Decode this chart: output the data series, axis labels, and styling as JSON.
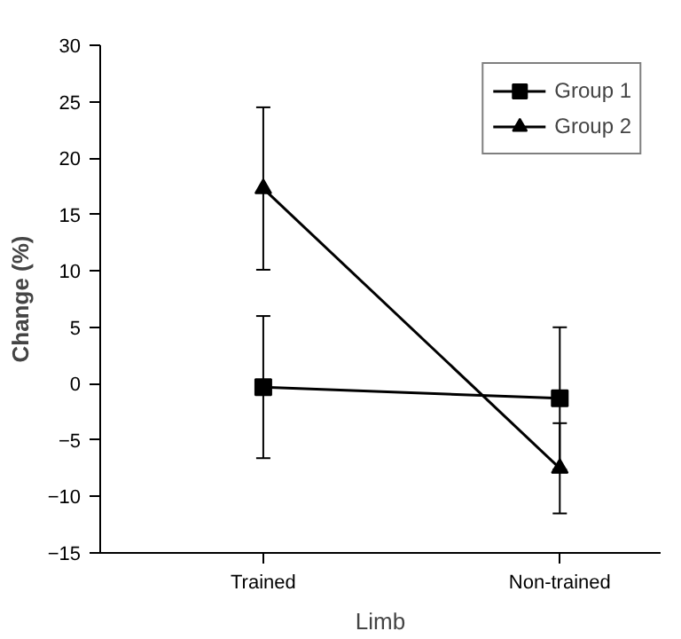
{
  "chart_data": {
    "type": "line",
    "xlabel": "Limb",
    "ylabel": "Change (%)",
    "categories": [
      "Trained",
      "Non-trained"
    ],
    "series": [
      {
        "name": "Group 1",
        "color": "#000000",
        "marker": "square",
        "values": [
          -0.3,
          -1.3
        ],
        "errors": [
          6.3,
          6.3
        ]
      },
      {
        "name": "Group 2",
        "color": "#000000",
        "marker": "triangle",
        "values": [
          17.3,
          -7.5
        ],
        "errors": [
          7.2,
          4
        ]
      }
    ],
    "ylim": [
      -15,
      30
    ],
    "yticks": [
      -15,
      -10,
      -5,
      0,
      5,
      10,
      15,
      20,
      25,
      30
    ],
    "grid": false,
    "legend": "top right",
    "line_style": "solid"
  }
}
